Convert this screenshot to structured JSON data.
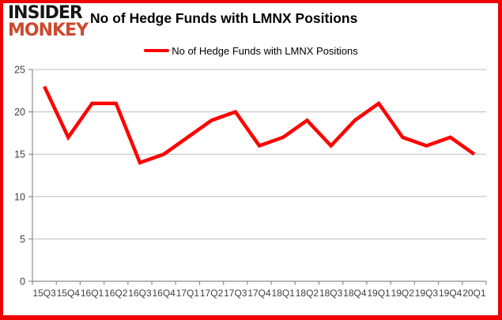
{
  "logo": {
    "line1": "INSIDER",
    "line2": "MONKEY"
  },
  "header": {
    "title": "No of Hedge Funds with LMNX Positions"
  },
  "legend": {
    "label": "No of Hedge Funds with LMNX Positions"
  },
  "colors": {
    "series_line": "#ff0000",
    "frame_border": "#ee0202",
    "logo_primary": "#161616",
    "logo_accent": "#cb4a2e",
    "gridline": "#bdbdbd",
    "axis": "#8c8c8c",
    "tick_label": "#3f3f3f",
    "title_text": "#000000"
  },
  "chart_data": {
    "type": "line",
    "title": "No of Hedge Funds with LMNX Positions",
    "categories": [
      "15Q3",
      "15Q4",
      "16Q1",
      "16Q2",
      "16Q3",
      "16Q4",
      "17Q1",
      "17Q2",
      "17Q3",
      "17Q4",
      "18Q1",
      "18Q2",
      "18Q3",
      "18Q4",
      "19Q1",
      "19Q2",
      "19Q3",
      "19Q4",
      "20Q1"
    ],
    "series": [
      {
        "name": "No of Hedge Funds with LMNX Positions",
        "values": [
          23,
          17,
          21,
          21,
          14,
          15,
          17,
          19,
          20,
          16,
          17,
          19,
          16,
          19,
          21,
          17,
          16,
          17,
          15
        ]
      }
    ],
    "xlabel": "",
    "ylabel": "",
    "ylim": [
      0,
      25
    ],
    "yticks": [
      0,
      5,
      10,
      15,
      20,
      25
    ],
    "grid": true,
    "legend_position": "top-center"
  }
}
